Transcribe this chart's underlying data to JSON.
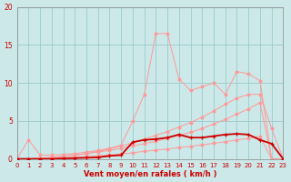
{
  "xlabel": "Vent moyen/en rafales ( km/h )",
  "xlim": [
    0,
    23
  ],
  "ylim": [
    0,
    20
  ],
  "yticks": [
    0,
    5,
    10,
    15,
    20
  ],
  "xticks": [
    0,
    1,
    2,
    3,
    4,
    5,
    6,
    7,
    8,
    9,
    10,
    11,
    12,
    13,
    14,
    15,
    16,
    17,
    18,
    19,
    20,
    21,
    22,
    23
  ],
  "bg_color": "#cce8e8",
  "grid_color": "#99cccc",
  "light_red": "#ff9999",
  "mid_red": "#ee4444",
  "dark_red": "#cc0000",
  "s1_x": [
    0,
    1,
    2,
    3,
    4,
    5,
    6,
    7,
    8,
    9,
    10,
    11,
    12,
    13,
    14,
    15,
    16,
    17,
    18,
    19,
    20,
    21,
    22,
    23
  ],
  "s1_y": [
    0,
    0.0,
    0.0,
    0.1,
    0.15,
    0.2,
    0.3,
    0.4,
    0.5,
    0.65,
    0.8,
    1.0,
    1.15,
    1.3,
    1.5,
    1.65,
    1.85,
    2.05,
    2.25,
    2.5,
    2.7,
    2.95,
    0.0,
    0.0
  ],
  "s2_x": [
    0,
    1,
    2,
    3,
    4,
    5,
    6,
    7,
    8,
    9,
    10,
    11,
    12,
    13,
    14,
    15,
    16,
    17,
    18,
    19,
    20,
    21,
    22,
    23
  ],
  "s2_y": [
    0,
    0.0,
    0.1,
    0.2,
    0.35,
    0.5,
    0.7,
    0.9,
    1.1,
    1.4,
    1.7,
    2.0,
    2.3,
    2.7,
    3.1,
    3.5,
    4.0,
    4.6,
    5.2,
    5.9,
    6.6,
    7.4,
    0.0,
    0.0
  ],
  "s3_x": [
    0,
    1,
    2,
    3,
    4,
    5,
    6,
    7,
    8,
    9,
    10,
    11,
    12,
    13,
    14,
    15,
    16,
    17,
    18,
    19,
    20,
    21,
    22,
    23
  ],
  "s3_y": [
    0,
    2.5,
    0.5,
    0.5,
    0.6,
    0.7,
    0.9,
    1.1,
    1.4,
    1.8,
    5.0,
    8.5,
    16.5,
    16.5,
    10.5,
    9.0,
    9.5,
    10.0,
    8.5,
    11.5,
    11.2,
    10.3,
    0.0,
    0.0
  ],
  "s4_x": [
    0,
    1,
    2,
    3,
    4,
    5,
    6,
    7,
    8,
    9,
    10,
    11,
    12,
    13,
    14,
    15,
    16,
    17,
    18,
    19,
    20,
    21,
    22,
    23
  ],
  "s4_y": [
    0,
    0.0,
    0.1,
    0.2,
    0.3,
    0.5,
    0.7,
    1.0,
    1.3,
    1.7,
    2.1,
    2.6,
    3.1,
    3.6,
    4.2,
    4.8,
    5.5,
    6.3,
    7.2,
    8.0,
    8.5,
    8.5,
    4.0,
    0.0
  ],
  "s5_x": [
    0,
    1,
    2,
    3,
    4,
    5,
    6,
    7,
    8,
    9,
    10,
    11,
    12,
    13,
    14,
    15,
    16,
    17,
    18,
    19,
    20,
    21,
    22,
    23
  ],
  "s5_y": [
    0,
    0.0,
    0.0,
    0.0,
    0.05,
    0.1,
    0.15,
    0.2,
    0.4,
    0.5,
    2.2,
    2.5,
    2.6,
    2.8,
    3.2,
    2.8,
    2.8,
    3.0,
    3.2,
    3.3,
    3.2,
    2.5,
    2.0,
    0.0
  ]
}
